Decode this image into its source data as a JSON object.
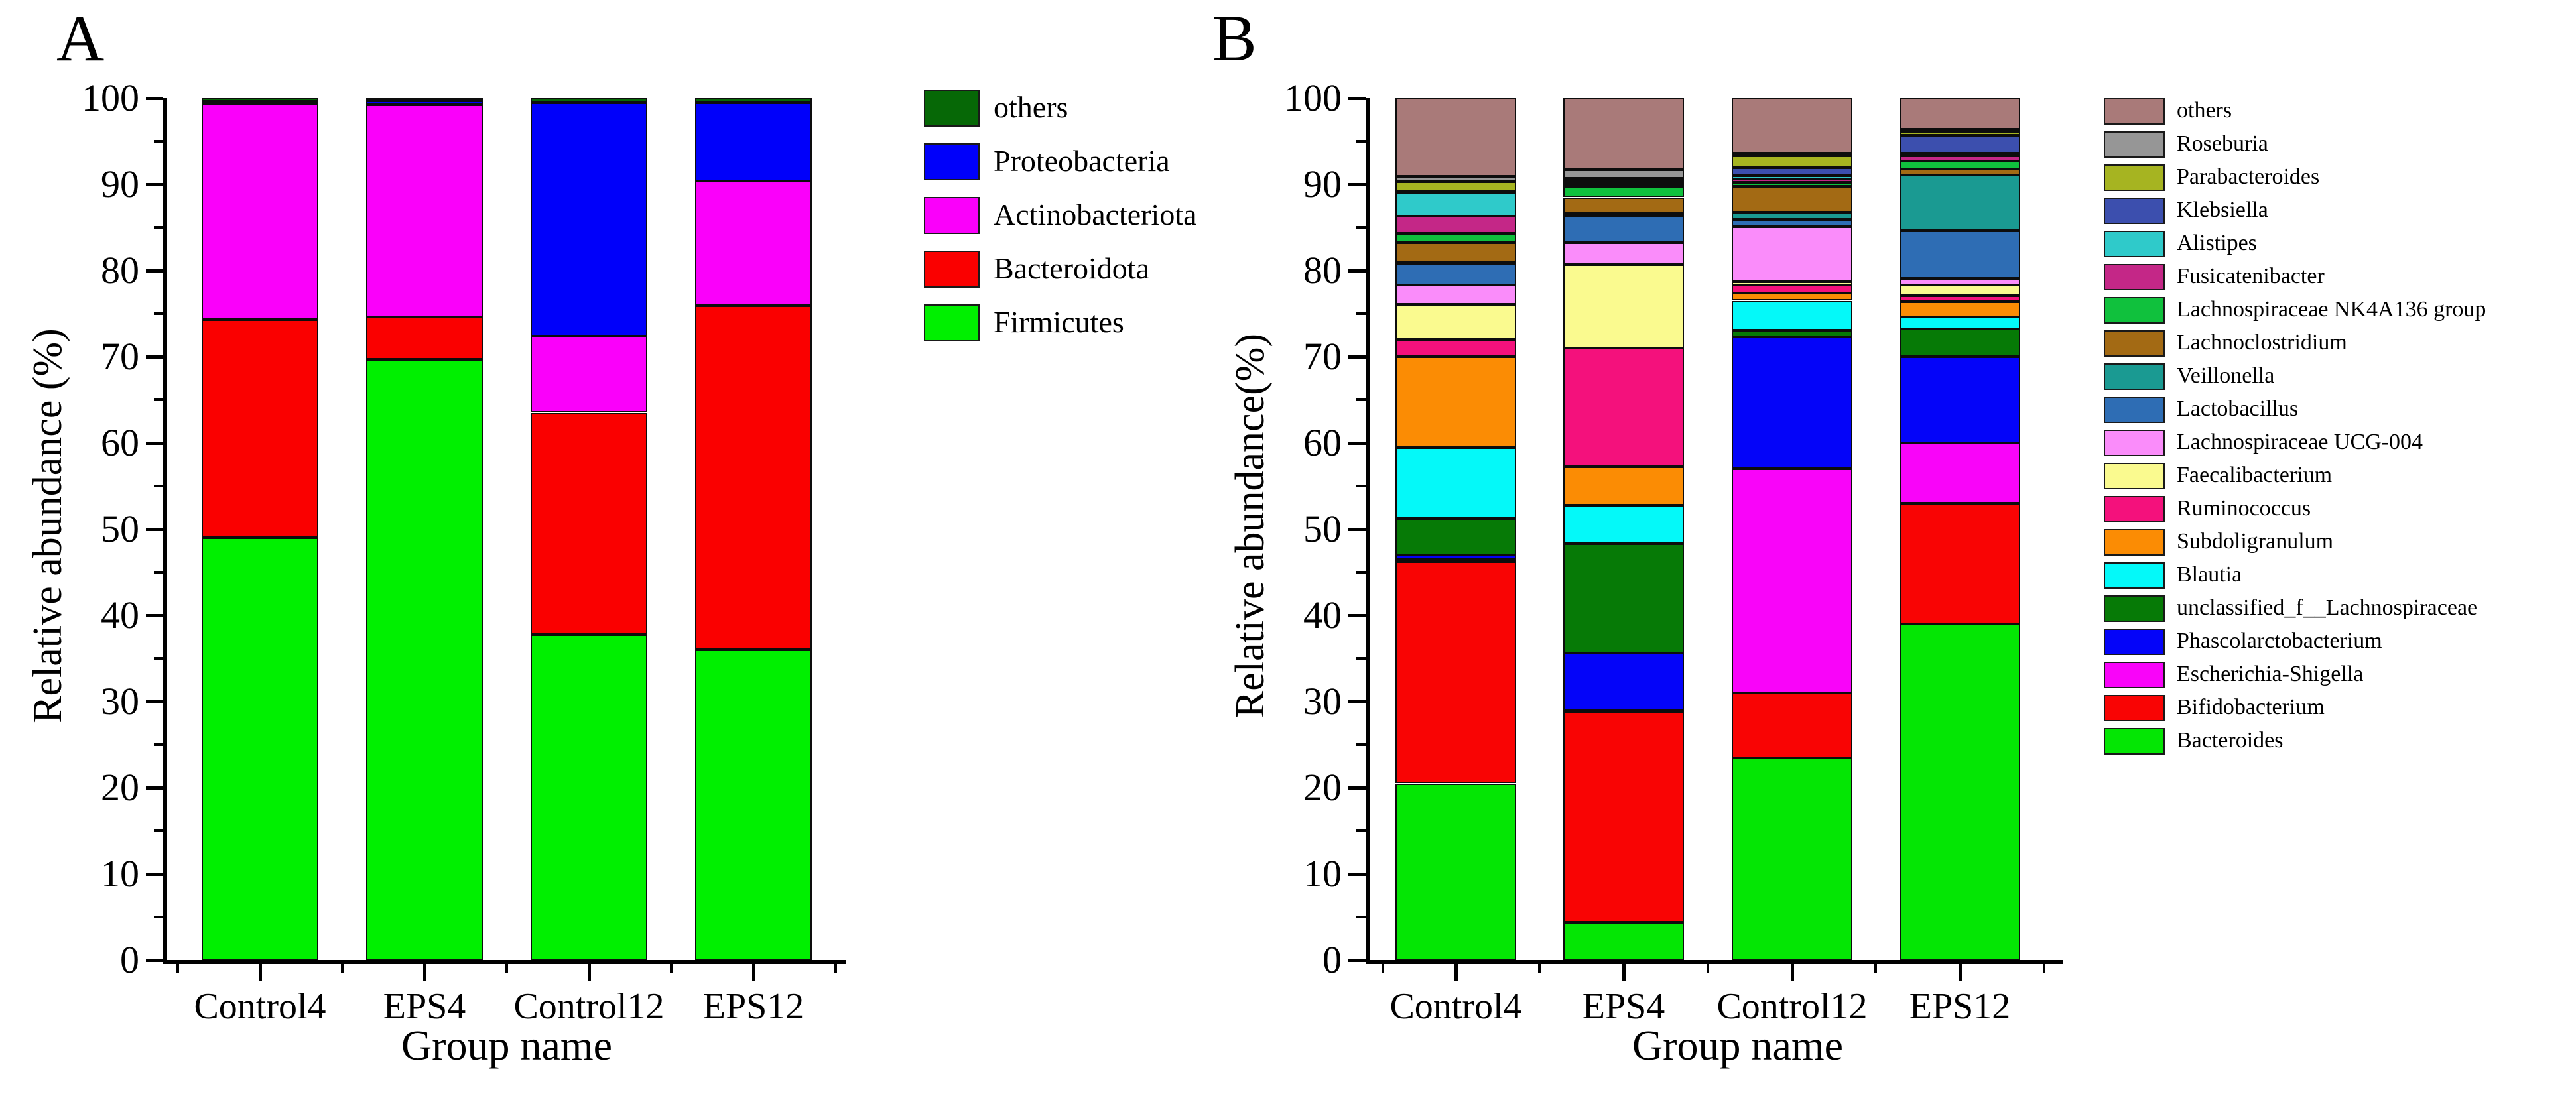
{
  "figure": {
    "panel_letters": [
      "A",
      "B"
    ],
    "background_color": "#ffffff",
    "axis_color": "#000000"
  },
  "chart_data": [
    {
      "type": "bar",
      "stacked": true,
      "panel_label": "A",
      "title": "",
      "xlabel": "Group name",
      "ylabel": "Relative abundance (%)",
      "ylim": [
        0,
        100
      ],
      "grid": false,
      "legend_position": "right-top",
      "y_ticks": [
        0,
        10,
        20,
        30,
        40,
        50,
        60,
        70,
        80,
        90,
        100
      ],
      "categories": [
        "Control4",
        "EPS4",
        "Control12",
        "EPS12"
      ],
      "series_note": "bottom to top stacking order; legend shown top-to-bottom reversed",
      "series": [
        {
          "name": "Firmicutes",
          "color": "#00f000",
          "values": [
            49.0,
            69.7,
            37.8,
            36.0
          ]
        },
        {
          "name": "Bacteroidota",
          "color": "#fa0000",
          "values": [
            25.3,
            4.9,
            25.7,
            39.9
          ]
        },
        {
          "name": "Actinobacteriota",
          "color": "#fa00fa",
          "values": [
            25.1,
            24.6,
            8.9,
            14.5
          ]
        },
        {
          "name": "Proteobacteria",
          "color": "#0000fa",
          "values": [
            0.2,
            0.5,
            27.1,
            9.1
          ]
        },
        {
          "name": "others",
          "color": "#066806",
          "values": [
            0.4,
            0.3,
            0.5,
            0.5
          ]
        }
      ]
    },
    {
      "type": "bar",
      "stacked": true,
      "panel_label": "B",
      "title": "",
      "xlabel": "Group name",
      "ylabel": "Relative abundance(%)",
      "ylim": [
        0,
        100
      ],
      "grid": false,
      "legend_position": "right-top",
      "y_ticks": [
        0,
        10,
        20,
        30,
        40,
        50,
        60,
        70,
        80,
        90,
        100
      ],
      "categories": [
        "Control4",
        "EPS4",
        "Control12",
        "EPS12"
      ],
      "series_note": "bottom to top stacking order; legend shown top-to-bottom reversed",
      "series": [
        {
          "name": "Bacteroides",
          "color": "#04e604",
          "values": [
            20.5,
            4.4,
            23.5,
            39.0
          ]
        },
        {
          "name": "Bifidobacterium",
          "color": "#f90404",
          "values": [
            25.7,
            24.4,
            7.5,
            14.0
          ]
        },
        {
          "name": "Escherichia-Shigella",
          "color": "#f904f9",
          "values": [
            0.3,
            0.2,
            26.0,
            7.0
          ]
        },
        {
          "name": "Phascolarctobacterium",
          "color": "#0404f9",
          "values": [
            0.5,
            6.6,
            15.3,
            10.0
          ]
        },
        {
          "name": "unclassified_f__Lachnospiraceae",
          "color": "#067a06",
          "values": [
            4.2,
            12.7,
            0.8,
            3.2
          ]
        },
        {
          "name": "Blautia",
          "color": "#04f9f9",
          "values": [
            8.3,
            4.5,
            3.4,
            1.4
          ]
        },
        {
          "name": "Subdoligranulum",
          "color": "#fb8c04",
          "values": [
            10.5,
            4.4,
            0.9,
            1.8
          ]
        },
        {
          "name": "Ruminococcus",
          "color": "#f4117c",
          "values": [
            2.0,
            13.8,
            0.9,
            0.7
          ]
        },
        {
          "name": "Faecalibacterium",
          "color": "#fafa8f",
          "values": [
            4.1,
            9.7,
            0.4,
            1.2
          ]
        },
        {
          "name": "Lachnospiraceae UCG-004",
          "color": "#fa8cfa",
          "values": [
            2.2,
            2.5,
            6.4,
            0.8
          ]
        },
        {
          "name": "Lactobacillus",
          "color": "#2e6db4",
          "values": [
            2.5,
            3.2,
            0.8,
            5.5
          ]
        },
        {
          "name": "Veillonella",
          "color": "#1a9a92",
          "values": [
            0.2,
            0.2,
            0.9,
            6.5
          ]
        },
        {
          "name": "Lachnoclostridium",
          "color": "#a36a14",
          "values": [
            2.2,
            1.9,
            3.0,
            0.7
          ]
        },
        {
          "name": "Lachnospiraceae NK4A136 group",
          "color": "#10c13d",
          "values": [
            1.1,
            1.3,
            0.4,
            0.9
          ]
        },
        {
          "name": "Fusicatenibacter",
          "color": "#c42787",
          "values": [
            2.0,
            0.3,
            0.4,
            0.6
          ]
        },
        {
          "name": "Alistipes",
          "color": "#2fcaca",
          "values": [
            2.7,
            0.2,
            0.4,
            0.3
          ]
        },
        {
          "name": "Klebsiella",
          "color": "#3c4fae",
          "values": [
            0.2,
            0.2,
            0.9,
            2.1
          ]
        },
        {
          "name": "Parabacteroides",
          "color": "#a6b421",
          "values": [
            1.1,
            0.2,
            1.4,
            0.4
          ]
        },
        {
          "name": "Roseburia",
          "color": "#969696",
          "values": [
            0.6,
            1.0,
            0.3,
            0.3
          ]
        },
        {
          "name": "others",
          "color": "#a97a79",
          "values": [
            9.1,
            8.3,
            6.4,
            3.6
          ]
        }
      ]
    }
  ]
}
